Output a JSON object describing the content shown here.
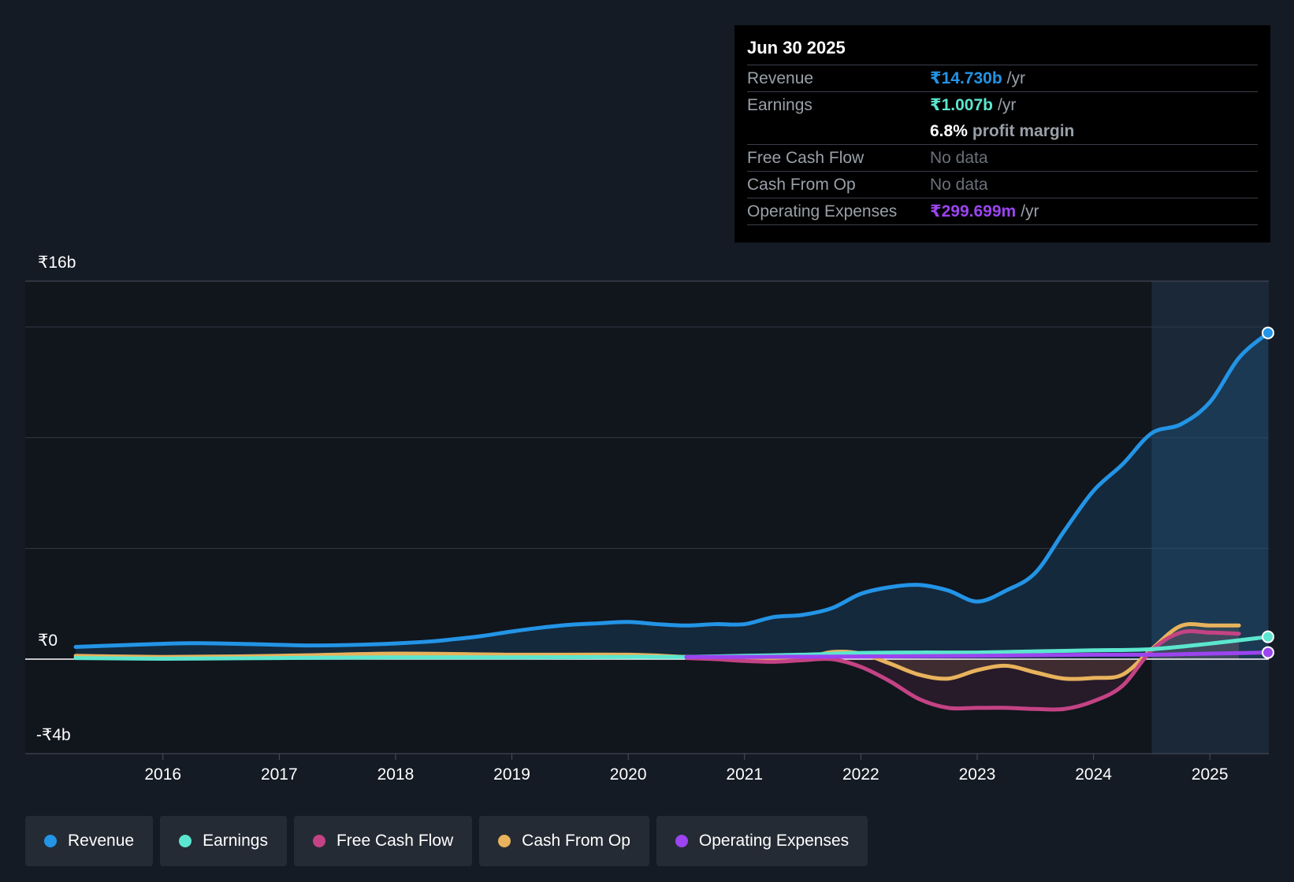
{
  "chart_data": {
    "type": "area",
    "title": "",
    "y_axis": {
      "min_label": "-₹4b",
      "zero_label": "₹0",
      "max_label": "₹16b",
      "ylim": [
        -4,
        16
      ],
      "unit": "₹b"
    },
    "x_axis": {
      "ticks": [
        "2016",
        "2017",
        "2018",
        "2019",
        "2020",
        "2021",
        "2022",
        "2023",
        "2024",
        "2025"
      ],
      "xlim": [
        2015.25,
        2025.5
      ]
    },
    "forecast_start": 2024.5,
    "series": [
      {
        "name": "Revenue",
        "color": "#2394e6",
        "fill": true,
        "points": [
          [
            2015.25,
            0.55
          ],
          [
            2015.75,
            0.65
          ],
          [
            2016.25,
            0.72
          ],
          [
            2016.75,
            0.68
          ],
          [
            2017.25,
            0.62
          ],
          [
            2017.75,
            0.66
          ],
          [
            2018.25,
            0.78
          ],
          [
            2018.5,
            0.9
          ],
          [
            2018.75,
            1.05
          ],
          [
            2019.0,
            1.25
          ],
          [
            2019.25,
            1.42
          ],
          [
            2019.5,
            1.55
          ],
          [
            2019.75,
            1.62
          ],
          [
            2020.0,
            1.68
          ],
          [
            2020.25,
            1.58
          ],
          [
            2020.5,
            1.52
          ],
          [
            2020.75,
            1.58
          ],
          [
            2021.0,
            1.58
          ],
          [
            2021.25,
            1.9
          ],
          [
            2021.5,
            2.0
          ],
          [
            2021.75,
            2.3
          ],
          [
            2022.0,
            2.95
          ],
          [
            2022.25,
            3.25
          ],
          [
            2022.5,
            3.35
          ],
          [
            2022.75,
            3.1
          ],
          [
            2023.0,
            2.6
          ],
          [
            2023.25,
            3.1
          ],
          [
            2023.5,
            3.9
          ],
          [
            2023.75,
            5.8
          ],
          [
            2024.0,
            7.6
          ],
          [
            2024.25,
            8.8
          ],
          [
            2024.5,
            10.2
          ],
          [
            2024.75,
            10.6
          ],
          [
            2025.0,
            11.6
          ],
          [
            2025.25,
            13.6
          ],
          [
            2025.5,
            14.73
          ]
        ]
      },
      {
        "name": "Earnings",
        "color": "#5ce6cf",
        "fill": false,
        "points": [
          [
            2015.25,
            0.05
          ],
          [
            2016.0,
            0.02
          ],
          [
            2017.0,
            0.05
          ],
          [
            2018.0,
            0.08
          ],
          [
            2019.0,
            0.08
          ],
          [
            2020.0,
            0.1
          ],
          [
            2020.5,
            0.1
          ],
          [
            2021.0,
            0.15
          ],
          [
            2021.5,
            0.2
          ],
          [
            2022.0,
            0.28
          ],
          [
            2022.5,
            0.3
          ],
          [
            2023.0,
            0.3
          ],
          [
            2023.5,
            0.35
          ],
          [
            2024.0,
            0.4
          ],
          [
            2024.5,
            0.45
          ],
          [
            2025.0,
            0.7
          ],
          [
            2025.5,
            1.007
          ]
        ]
      },
      {
        "name": "Free Cash Flow",
        "color": "#c44384",
        "fill": true,
        "points": [
          [
            2020.5,
            0.05
          ],
          [
            2020.75,
            0.0
          ],
          [
            2021.0,
            -0.08
          ],
          [
            2021.25,
            -0.12
          ],
          [
            2021.5,
            -0.05
          ],
          [
            2021.75,
            0.0
          ],
          [
            2022.0,
            -0.35
          ],
          [
            2022.25,
            -1.0
          ],
          [
            2022.5,
            -1.8
          ],
          [
            2022.75,
            -2.2
          ],
          [
            2023.0,
            -2.2
          ],
          [
            2023.25,
            -2.2
          ],
          [
            2023.5,
            -2.25
          ],
          [
            2023.75,
            -2.25
          ],
          [
            2024.0,
            -1.9
          ],
          [
            2024.25,
            -1.2
          ],
          [
            2024.5,
            0.4
          ],
          [
            2024.75,
            1.2
          ],
          [
            2025.0,
            1.2
          ],
          [
            2025.25,
            1.15
          ]
        ]
      },
      {
        "name": "Cash From Op",
        "color": "#e8b35c",
        "fill": true,
        "points": [
          [
            2015.25,
            0.15
          ],
          [
            2016.0,
            0.1
          ],
          [
            2017.0,
            0.15
          ],
          [
            2018.0,
            0.25
          ],
          [
            2019.0,
            0.2
          ],
          [
            2020.0,
            0.2
          ],
          [
            2020.5,
            0.1
          ],
          [
            2021.0,
            0.05
          ],
          [
            2021.5,
            0.05
          ],
          [
            2021.75,
            0.32
          ],
          [
            2022.0,
            0.25
          ],
          [
            2022.25,
            -0.2
          ],
          [
            2022.5,
            -0.7
          ],
          [
            2022.75,
            -0.88
          ],
          [
            2023.0,
            -0.5
          ],
          [
            2023.25,
            -0.3
          ],
          [
            2023.5,
            -0.6
          ],
          [
            2023.75,
            -0.88
          ],
          [
            2024.0,
            -0.85
          ],
          [
            2024.25,
            -0.7
          ],
          [
            2024.5,
            0.45
          ],
          [
            2024.75,
            1.5
          ],
          [
            2025.0,
            1.52
          ],
          [
            2025.25,
            1.52
          ]
        ]
      },
      {
        "name": "Operating Expenses",
        "color": "#9b44f0",
        "fill": false,
        "points": [
          [
            2020.5,
            0.1
          ],
          [
            2021.0,
            0.1
          ],
          [
            2022.0,
            0.12
          ],
          [
            2023.0,
            0.15
          ],
          [
            2024.0,
            0.2
          ],
          [
            2024.5,
            0.2
          ],
          [
            2025.0,
            0.25
          ],
          [
            2025.5,
            0.3
          ]
        ]
      }
    ]
  },
  "tooltip": {
    "date": "Jun 30 2025",
    "revenue": {
      "label": "Revenue",
      "value": "₹14.730b",
      "unit": "/yr"
    },
    "earnings": {
      "label": "Earnings",
      "value": "₹1.007b",
      "unit": "/yr"
    },
    "margin": {
      "value": "6.8%",
      "text": "profit margin"
    },
    "fcf": {
      "label": "Free Cash Flow",
      "value": "No data"
    },
    "cfo": {
      "label": "Cash From Op",
      "value": "No data"
    },
    "opex": {
      "label": "Operating Expenses",
      "value": "₹299.699m",
      "unit": "/yr"
    }
  },
  "legend": [
    {
      "label": "Revenue",
      "color": "#2394e6"
    },
    {
      "label": "Earnings",
      "color": "#5ce6cf"
    },
    {
      "label": "Free Cash Flow",
      "color": "#c44384"
    },
    {
      "label": "Cash From Op",
      "color": "#e8b35c"
    },
    {
      "label": "Operating Expenses",
      "color": "#9b44f0"
    }
  ]
}
